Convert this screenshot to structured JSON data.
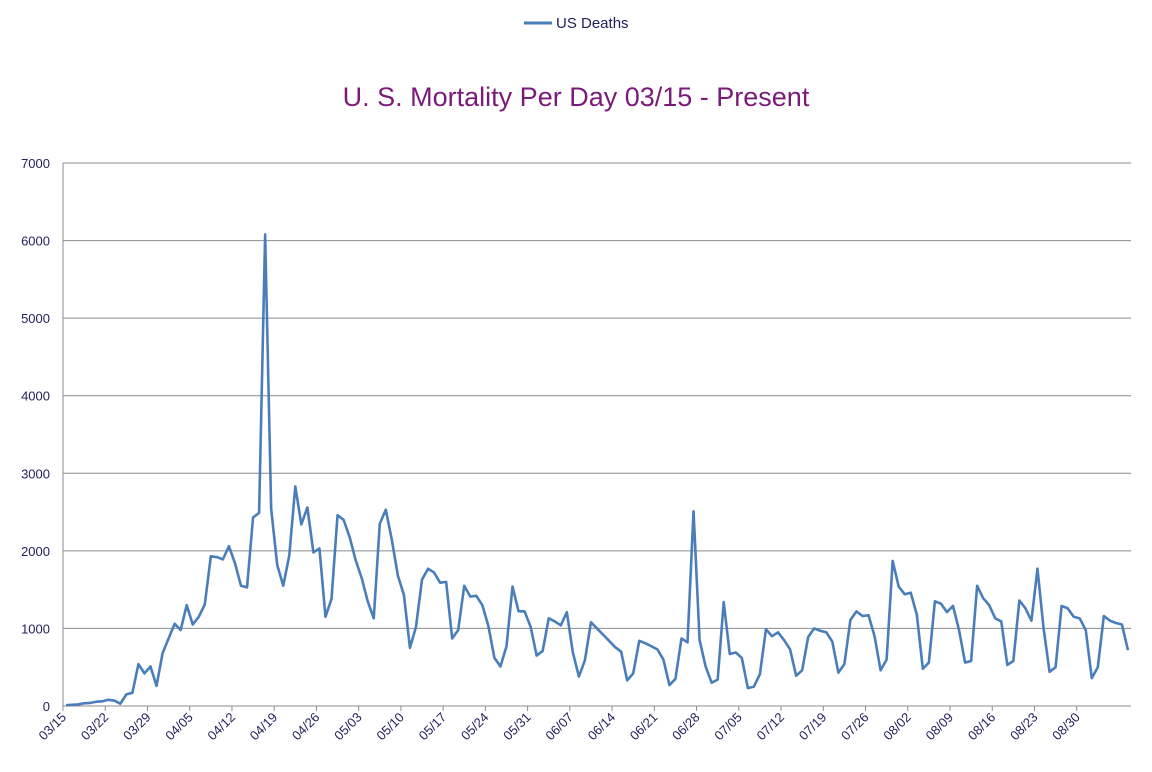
{
  "chart_data": {
    "type": "line",
    "title": "U. S. Mortality Per Day 03/15 - Present",
    "legend": {
      "position": "top",
      "entries": [
        "US Deaths"
      ]
    },
    "series": [
      {
        "name": "US Deaths",
        "color": "#4a7ebb",
        "values": [
          10,
          15,
          20,
          35,
          40,
          55,
          60,
          80,
          70,
          30,
          150,
          170,
          540,
          420,
          510,
          260,
          680,
          870,
          1060,
          980,
          1300,
          1050,
          1150,
          1310,
          1930,
          1920,
          1890,
          2060,
          1840,
          1550,
          1530,
          2430,
          2490,
          6080,
          2540,
          1820,
          1550,
          1940,
          2830,
          2340,
          2560,
          1980,
          2030,
          1150,
          1380,
          2460,
          2400,
          2180,
          1880,
          1650,
          1350,
          1130,
          2350,
          2530,
          2140,
          1680,
          1430,
          750,
          1020,
          1630,
          1770,
          1720,
          1590,
          1600,
          870,
          980,
          1550,
          1410,
          1420,
          1300,
          1030,
          620,
          510,
          770,
          1540,
          1220,
          1220,
          1020,
          650,
          710,
          1130,
          1090,
          1040,
          1210,
          690,
          380,
          590,
          1080,
          1000,
          920,
          840,
          760,
          700,
          330,
          420,
          840,
          810,
          770,
          730,
          600,
          270,
          350,
          870,
          820,
          2510,
          850,
          510,
          300,
          340,
          1340,
          670,
          690,
          620,
          230,
          250,
          410,
          990,
          900,
          950,
          850,
          730,
          390,
          460,
          890,
          1000,
          970,
          950,
          830,
          430,
          540,
          1110,
          1220,
          1160,
          1170,
          900,
          460,
          600,
          1870,
          1540,
          1440,
          1460,
          1180,
          480,
          560,
          1350,
          1320,
          1210,
          1290,
          980,
          560,
          580,
          1550,
          1390,
          1300,
          1130,
          1090,
          530,
          580,
          1360,
          1260,
          1100,
          1770,
          1010,
          440,
          500,
          1290,
          1260,
          1150,
          1130,
          980,
          360,
          500,
          1160,
          1100,
          1070,
          1050,
          720
        ]
      }
    ],
    "x_start": "03/15",
    "x_tick_labels": [
      "03/15",
      "03/22",
      "03/29",
      "04/05",
      "04/12",
      "04/19",
      "04/26",
      "05/03",
      "05/10",
      "05/17",
      "05/24",
      "05/31",
      "06/07",
      "06/14",
      "06/21",
      "06/28",
      "07/05",
      "07/12",
      "07/19",
      "07/26",
      "08/02",
      "08/09",
      "08/16",
      "08/23",
      "08/30"
    ],
    "y_tick_labels": [
      "0",
      "1000",
      "2000",
      "3000",
      "4000",
      "5000",
      "6000",
      "7000"
    ],
    "ylim": [
      0,
      7000
    ],
    "grid": true,
    "xlabel": "",
    "ylabel": ""
  }
}
